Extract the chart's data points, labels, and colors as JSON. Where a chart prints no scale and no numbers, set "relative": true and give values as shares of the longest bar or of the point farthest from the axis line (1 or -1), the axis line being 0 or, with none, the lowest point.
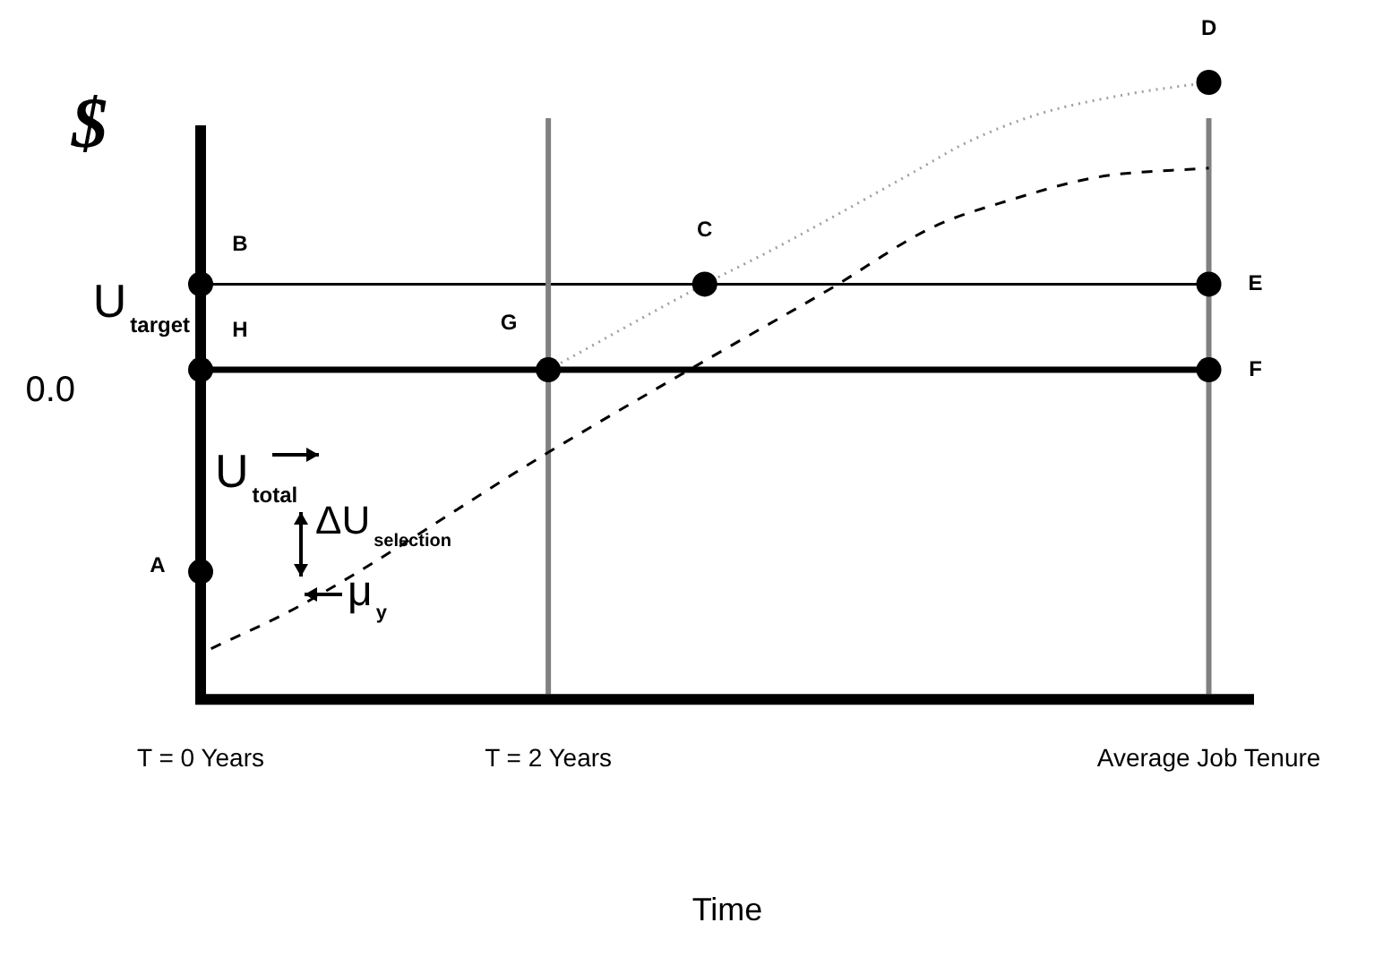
{
  "chart_data": {
    "type": "line",
    "ylabel": "$",
    "xlabel": "Time",
    "relative": true,
    "xlim": [
      0,
      6.06
    ],
    "xticks": [
      {
        "value": 0,
        "label": "T = 0 Years"
      },
      {
        "value": 2,
        "label": "T = 2 Years"
      },
      {
        "value": 5.8,
        "label": "Average Job Tenure"
      }
    ],
    "series": [
      {
        "type": "line",
        "color": "#000000",
        "line_style": "dashed",
        "marker": "none",
        "x": [
          0.06,
          0.57,
          2.0,
          2.92,
          3.62,
          4.21,
          4.65,
          5.16,
          5.8
        ],
        "values": [
          0.074,
          0.144,
          0.395,
          0.548,
          0.662,
          0.763,
          0.807,
          0.845,
          0.86
        ]
      },
      {
        "type": "line",
        "color": "#a0a0a0",
        "line_style": "dotted",
        "marker": "none",
        "x": [
          2.0,
          2.9,
          3.28,
          3.67,
          4.1,
          4.41,
          4.82,
          5.34,
          5.8
        ],
        "values": [
          0.53,
          0.67,
          0.725,
          0.785,
          0.853,
          0.902,
          0.948,
          0.981,
          1
        ]
      },
      {
        "type": "scatter",
        "color": "#000000",
        "marker": "circle",
        "x": [
          0,
          0,
          0,
          2,
          2.9,
          5.8,
          5.8,
          5.8
        ],
        "values": [
          0.2,
          0.67,
          0.53,
          0.53,
          0.67,
          0.67,
          0.53,
          1
        ]
      }
    ],
    "ref_lines": [
      {
        "axis": "y",
        "value": 0.67,
        "color": "#000000"
      },
      {
        "axis": "y",
        "value": 0.53,
        "color": "#000000"
      },
      {
        "axis": "x",
        "value": 2,
        "color": "#808080"
      },
      {
        "axis": "x",
        "value": 5.8,
        "color": "#808080"
      }
    ],
    "annotations": [
      {
        "text": "A",
        "x": 0,
        "y": 0.2
      },
      {
        "text": "B",
        "x": 0,
        "y": 0.67
      },
      {
        "text": "H",
        "x": 0,
        "y": 0.53
      },
      {
        "text": "G",
        "x": 2,
        "y": 0.53
      },
      {
        "text": "C",
        "x": 2.9,
        "y": 0.67
      },
      {
        "text": "E",
        "x": 5.8,
        "y": 0.67
      },
      {
        "text": "F",
        "x": 5.8,
        "y": 0.53
      },
      {
        "text": "D",
        "x": 5.8,
        "y": 1
      },
      "U$_{target}$",
      "0.0",
      "U$_{total}$",
      "ΔU$_{selection}$",
      "μ$_{y}$"
    ],
    "grid": false,
    "legend": false
  }
}
